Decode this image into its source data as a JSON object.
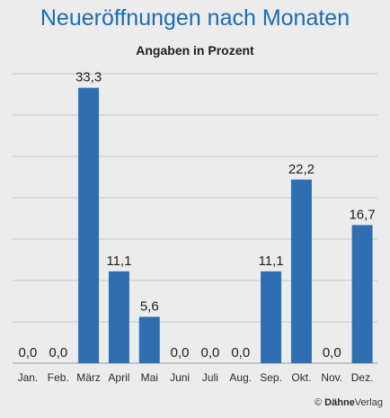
{
  "chart_data": {
    "type": "bar",
    "title": "Neueröffnungen nach Monaten",
    "subtitle": "Angaben in Prozent",
    "categories": [
      "Jan.",
      "Feb.",
      "März",
      "April",
      "Mai",
      "Juni",
      "Juli",
      "Aug.",
      "Sep.",
      "Okt.",
      "Nov.",
      "Dez."
    ],
    "values": [
      0.0,
      0.0,
      33.3,
      11.1,
      5.6,
      0.0,
      0.0,
      0.0,
      11.1,
      22.2,
      0.0,
      16.7
    ],
    "value_labels": [
      "0,0",
      "0,0",
      "33,3",
      "11,1",
      "5,6",
      "0,0",
      "0,0",
      "0,0",
      "11,1",
      "22,2",
      "0,0",
      "16,7"
    ],
    "ylim": [
      0,
      35
    ],
    "grid": true,
    "bar_color": "#2f6fb1"
  },
  "credit": {
    "symbol": "©",
    "brand": "Dähne",
    "suffix": "Verlag"
  }
}
